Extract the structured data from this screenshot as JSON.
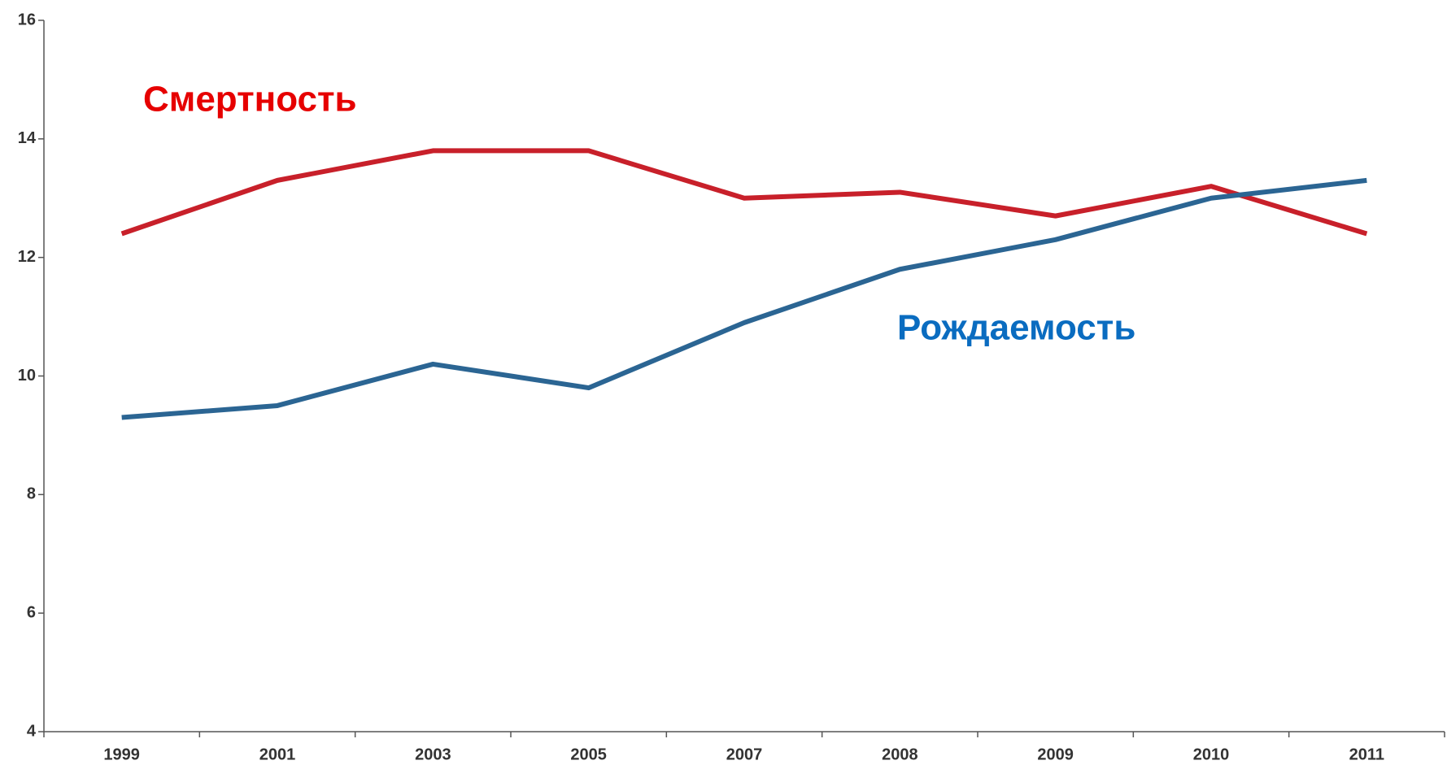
{
  "chart_data": {
    "type": "line",
    "categories": [
      "1999",
      "2001",
      "2003",
      "2005",
      "2007",
      "2008",
      "2009",
      "2010",
      "2011"
    ],
    "series": [
      {
        "name": "Смертность",
        "color": "#c8202a",
        "label_color": "#e60000",
        "values": [
          12.4,
          13.3,
          13.8,
          13.8,
          13.0,
          13.1,
          12.7,
          13.2,
          12.4
        ]
      },
      {
        "name": "Рождаемость",
        "color": "#2b6593",
        "label_color": "#0a6cc0",
        "values": [
          9.3,
          9.5,
          10.2,
          9.8,
          10.9,
          11.8,
          12.3,
          13.0,
          13.3
        ]
      }
    ],
    "ylim": [
      4,
      16
    ],
    "yticks": [
      4,
      6,
      8,
      10,
      12,
      14,
      16
    ],
    "grid": false
  }
}
